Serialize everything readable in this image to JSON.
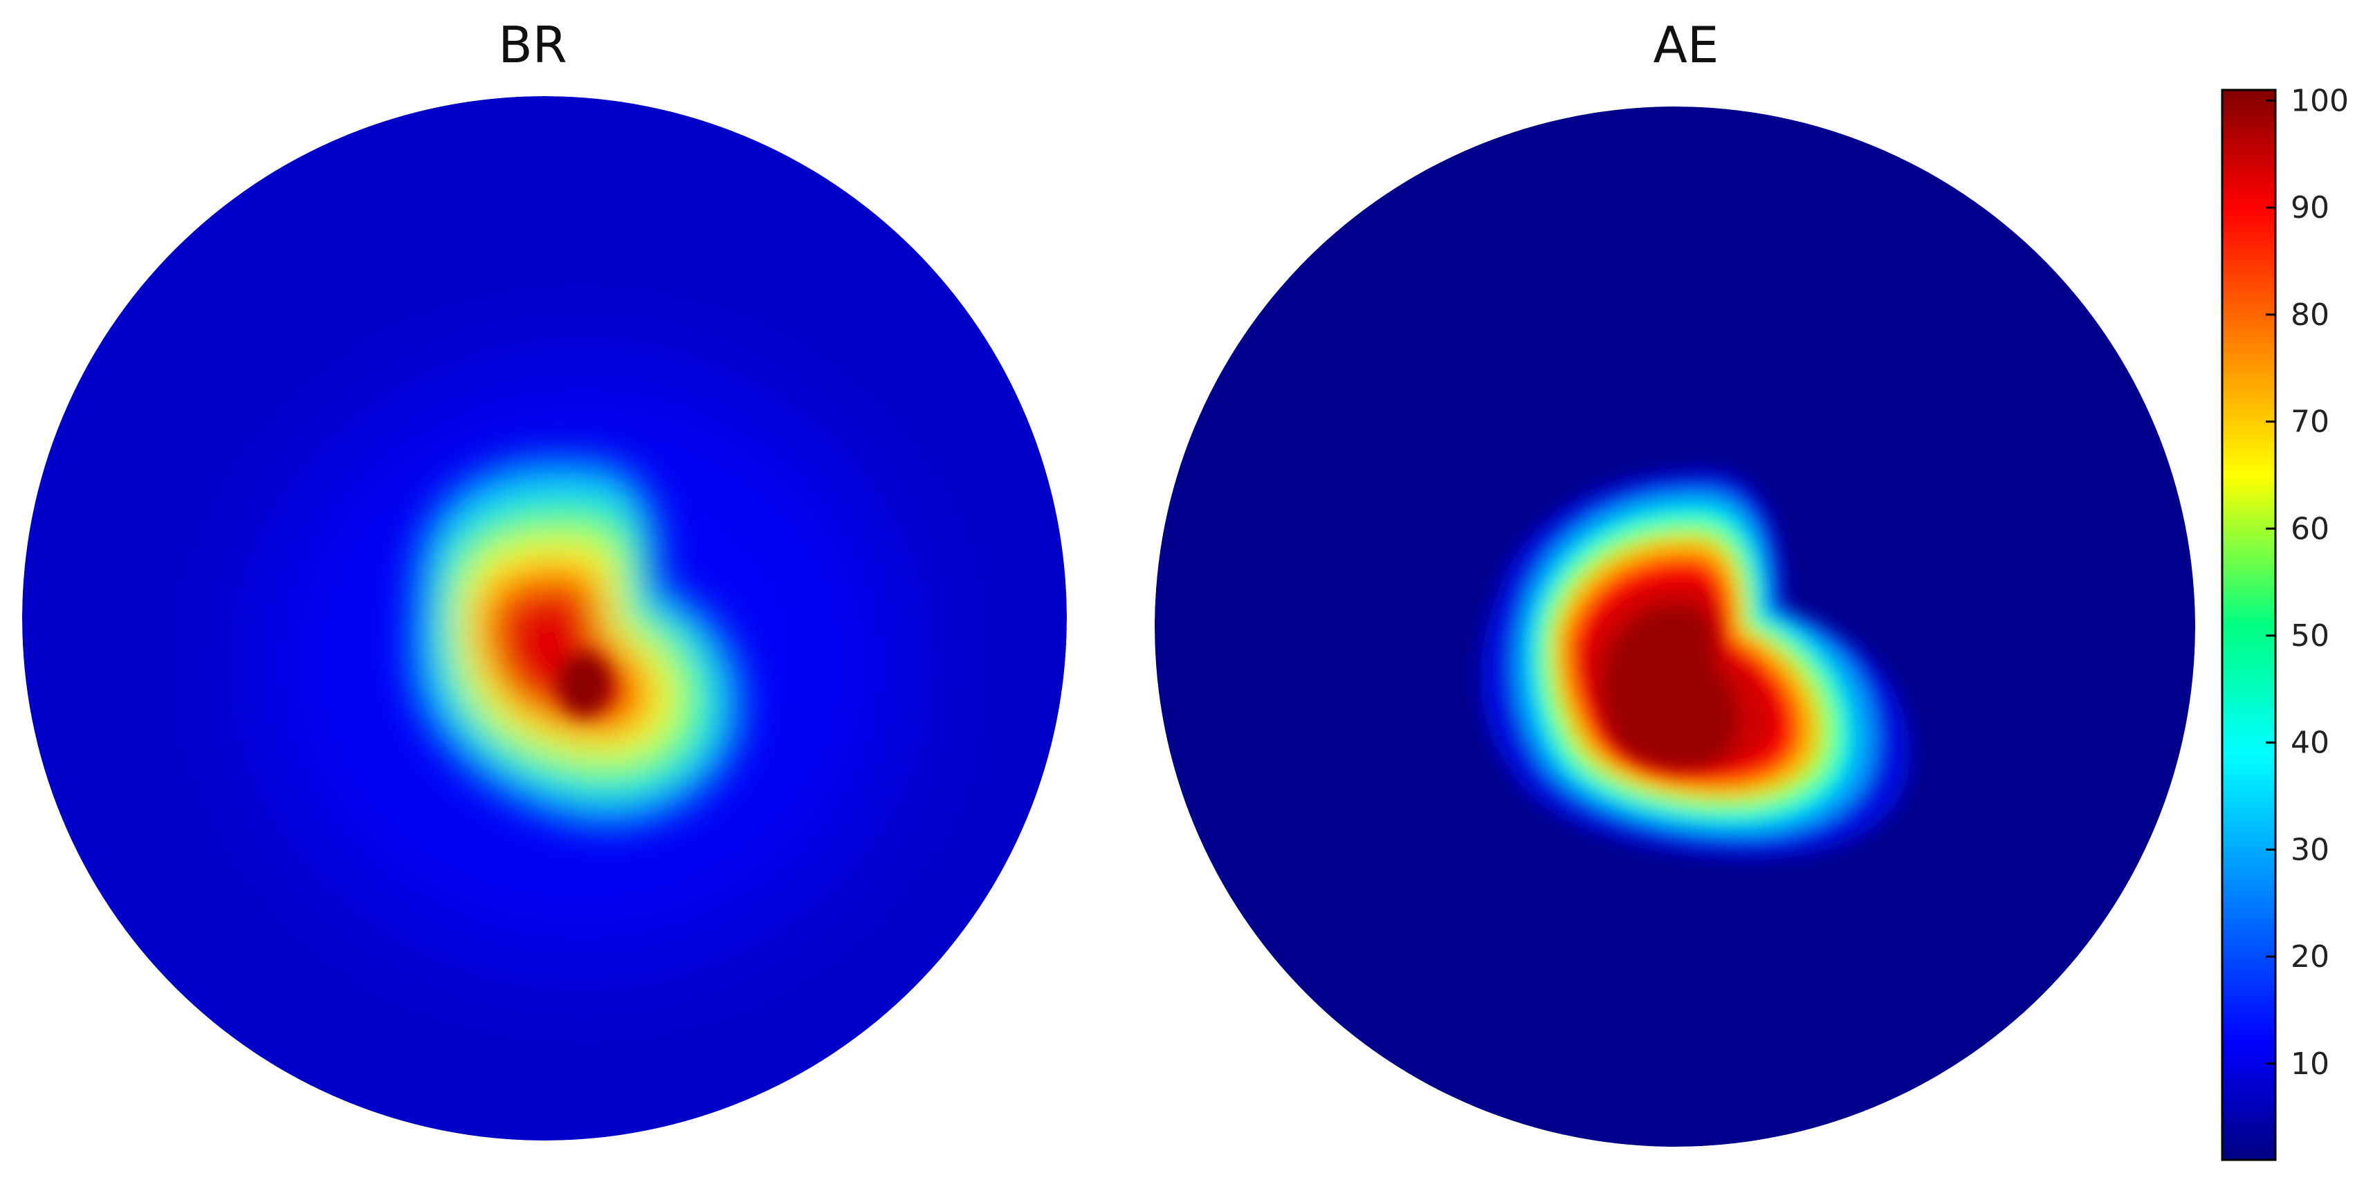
{
  "chart_data": [
    {
      "type": "heatmap",
      "title": "BR",
      "shape": "disc",
      "value_range": [
        0,
        100
      ],
      "hotspot": {
        "peak": 97,
        "description": "single irregular hotspot slightly right of and below the disc center"
      },
      "background_level": 10
    },
    {
      "type": "heatmap",
      "title": "AE",
      "shape": "disc",
      "value_range": [
        0,
        100
      ],
      "hotspot": {
        "peak": 100,
        "description": "large irregular hotspot slightly right of and below the disc center with a flat saturated core"
      },
      "background_level": 3
    }
  ],
  "colorbar": {
    "colormap": "jet",
    "min": 1,
    "max": 101,
    "ticks": [
      "10",
      "20",
      "30",
      "40",
      "50",
      "60",
      "70",
      "80",
      "90",
      "100"
    ]
  }
}
